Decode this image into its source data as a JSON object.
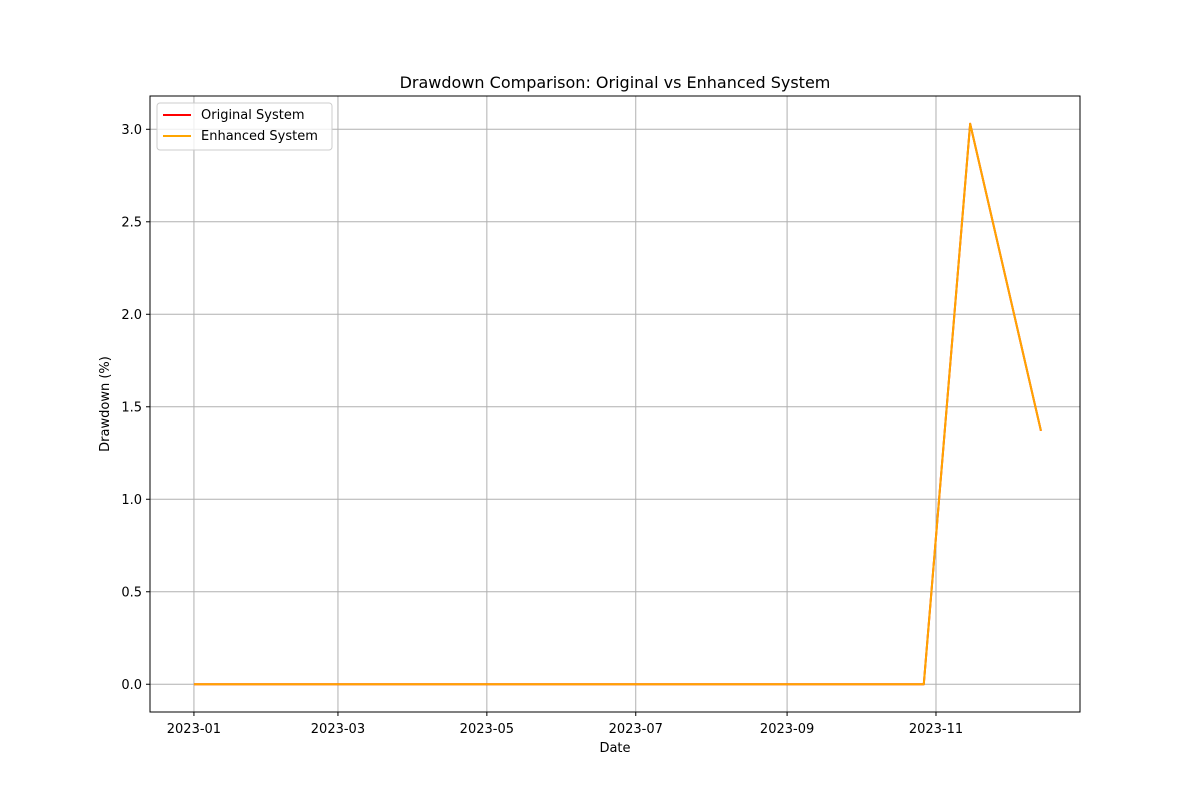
{
  "chart_data": {
    "type": "line",
    "title": "Drawdown Comparison: Original vs Enhanced System",
    "xlabel": "Date",
    "ylabel": "Drawdown (%)",
    "x_ticks": [
      "2023-01",
      "2023-03",
      "2023-05",
      "2023-07",
      "2023-09",
      "2023-11"
    ],
    "y_ticks": [
      "0.0",
      "0.5",
      "1.0",
      "1.5",
      "2.0",
      "2.5",
      "3.0"
    ],
    "ylim": [
      -0.15,
      3.18
    ],
    "xlim": [
      "2022-12-14",
      "2023-12-30"
    ],
    "grid": true,
    "legend_position": "upper-left",
    "x": [
      "2023-01-01",
      "2023-10-27",
      "2023-11-15",
      "2023-12-14"
    ],
    "series": [
      {
        "name": "Original System",
        "color": "#ff0000",
        "values": [
          0.0,
          0.0,
          3.03,
          1.37
        ]
      },
      {
        "name": "Enhanced System",
        "color": "#ffa500",
        "values": [
          0.0,
          0.0,
          3.03,
          1.37
        ]
      }
    ]
  }
}
